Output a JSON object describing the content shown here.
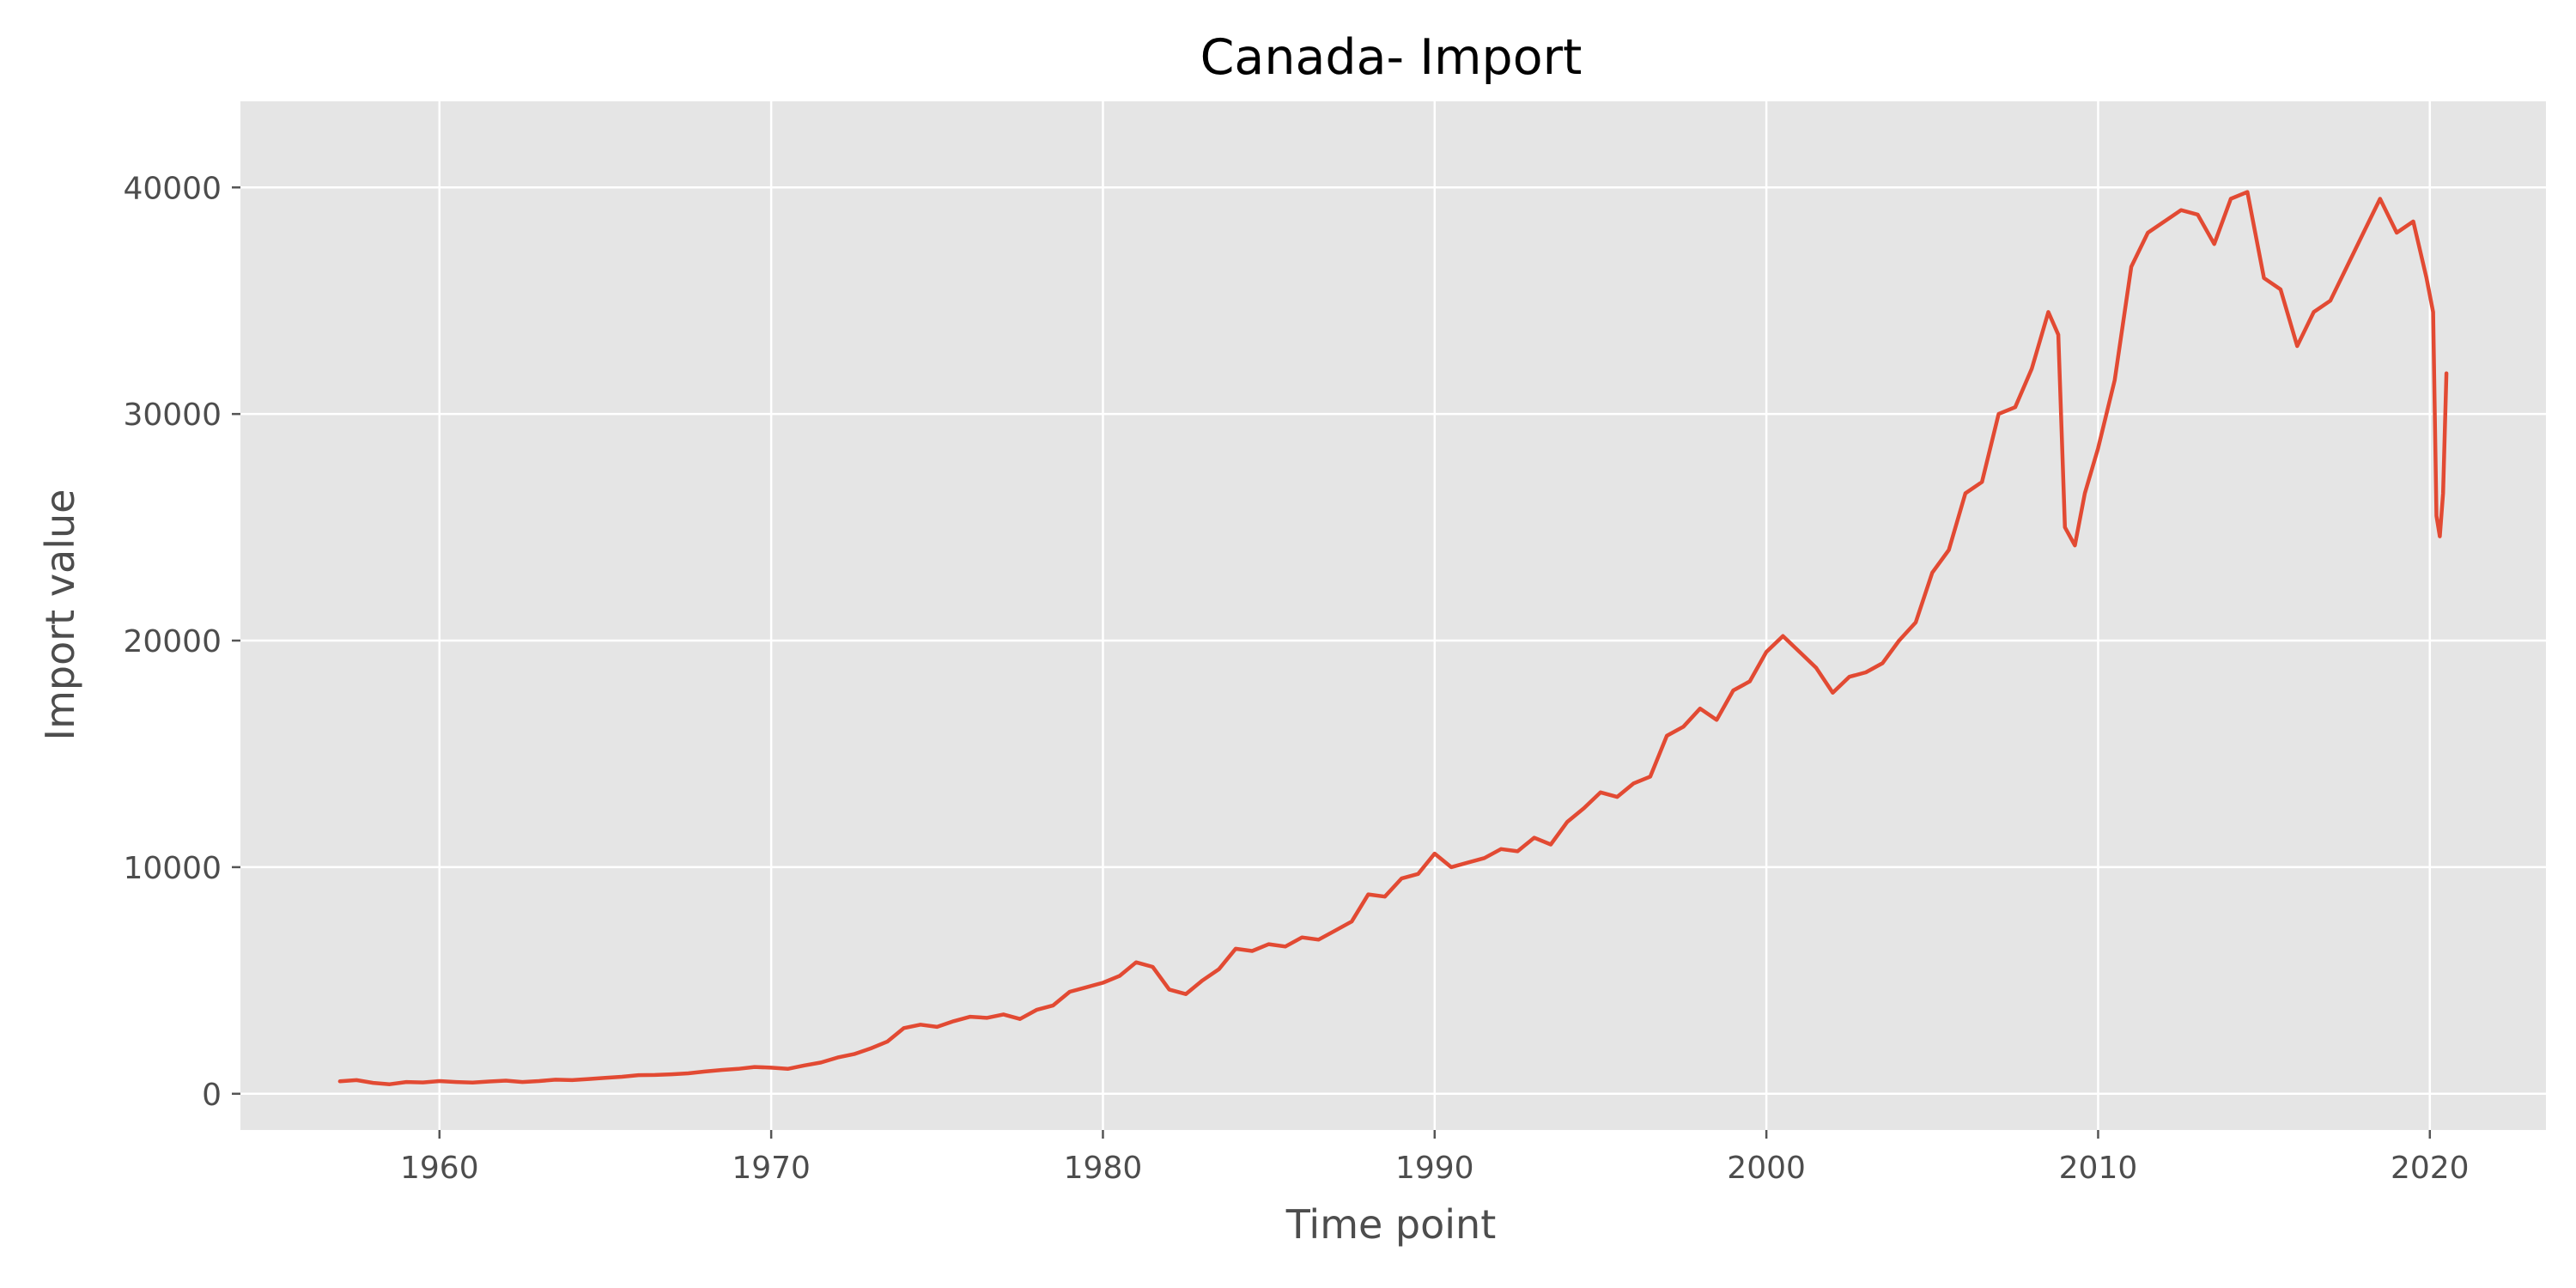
{
  "chart_data": {
    "type": "line",
    "title": "Canada- Import",
    "xlabel": "Time point",
    "ylabel": "Import value",
    "xlim": [
      1954.0,
      2023.5
    ],
    "ylim": [
      -1600,
      43800
    ],
    "x_ticks": [
      1960,
      1970,
      1980,
      1990,
      2000,
      2010,
      2020
    ],
    "x_tick_labels": [
      "1960",
      "1970",
      "1980",
      "1990",
      "2000",
      "2010",
      "2020"
    ],
    "y_ticks": [
      0,
      10000,
      20000,
      30000,
      40000
    ],
    "y_tick_labels": [
      "0",
      "10000",
      "20000",
      "30000",
      "40000"
    ],
    "grid": true,
    "legend": "none",
    "style": {
      "background": "#e5e5e5",
      "grid_color": "#ffffff",
      "line_color": "#e24a33"
    },
    "series": [
      {
        "x": [
          1957.0,
          1957.5,
          1958.0,
          1958.5,
          1959.0,
          1959.5,
          1960.0,
          1960.5,
          1961.0,
          1961.5,
          1962.0,
          1962.5,
          1963.0,
          1963.5,
          1964.0,
          1964.5,
          1965.0,
          1965.5,
          1966.0,
          1966.5,
          1967.0,
          1967.5,
          1968.0,
          1968.5,
          1969.0,
          1969.5,
          1970.0,
          1970.5,
          1971.0,
          1971.5,
          1972.0,
          1972.5,
          1973.0,
          1973.5,
          1974.0,
          1974.5,
          1975.0,
          1975.5,
          1976.0,
          1976.5,
          1977.0,
          1977.5,
          1978.0,
          1978.5,
          1979.0,
          1979.5,
          1980.0,
          1980.5,
          1981.0,
          1981.5,
          1982.0,
          1982.5,
          1983.0,
          1983.5,
          1984.0,
          1984.5,
          1985.0,
          1985.5,
          1986.0,
          1986.5,
          1987.0,
          1987.5,
          1988.0,
          1988.5,
          1989.0,
          1989.5,
          1990.0,
          1990.5,
          1991.0,
          1991.5,
          1992.0,
          1992.5,
          1993.0,
          1993.5,
          1994.0,
          1994.5,
          1995.0,
          1995.5,
          1996.0,
          1996.5,
          1997.0,
          1997.5,
          1998.0,
          1998.5,
          1999.0,
          1999.5,
          2000.0,
          2000.5,
          2001.0,
          2001.5,
          2002.0,
          2002.5,
          2003.0,
          2003.5,
          2004.0,
          2004.5,
          2005.0,
          2005.5,
          2006.0,
          2006.5,
          2007.0,
          2007.5,
          2008.0,
          2008.5,
          2008.8,
          2009.0,
          2009.3,
          2009.6,
          2010.0,
          2010.5,
          2011.0,
          2011.5,
          2012.0,
          2012.5,
          2013.0,
          2013.5,
          2014.0,
          2014.5,
          2015.0,
          2015.5,
          2016.0,
          2016.5,
          2017.0,
          2017.5,
          2018.0,
          2018.5,
          2019.0,
          2019.5,
          2019.9,
          2020.1,
          2020.2,
          2020.3,
          2020.4,
          2020.5
        ],
        "y": [
          550,
          600,
          480,
          420,
          520,
          500,
          560,
          520,
          490,
          540,
          580,
          520,
          560,
          620,
          600,
          650,
          700,
          750,
          820,
          830,
          860,
          900,
          980,
          1050,
          1100,
          1180,
          1150,
          1100,
          1250,
          1380,
          1600,
          1750,
          2000,
          2300,
          2900,
          3050,
          2950,
          3200,
          3400,
          3350,
          3500,
          3300,
          3700,
          3900,
          4500,
          4700,
          4900,
          5200,
          5800,
          5600,
          4600,
          4400,
          5000,
          5500,
          6400,
          6300,
          6600,
          6500,
          6900,
          6800,
          7200,
          7600,
          8800,
          8700,
          9500,
          9700,
          10600,
          10000,
          10200,
          10400,
          10800,
          10700,
          11300,
          11000,
          12000,
          12600,
          13300,
          13100,
          13700,
          14000,
          15800,
          16200,
          17000,
          16500,
          17800,
          18200,
          19500,
          20200,
          19500,
          18800,
          17700,
          18400,
          18600,
          19000,
          20000,
          20800,
          23000,
          24000,
          26500,
          27000,
          30000,
          30300,
          32000,
          34500,
          33500,
          25000,
          24200,
          26500,
          28500,
          31500,
          36500,
          38000,
          38500,
          39000,
          38800,
          37500,
          39500,
          39800,
          36000,
          35500,
          33000,
          34500,
          35000,
          36500,
          38000,
          39500,
          38000,
          38500,
          36000,
          34500,
          25500,
          24600,
          26500,
          31800
        ]
      }
    ]
  }
}
